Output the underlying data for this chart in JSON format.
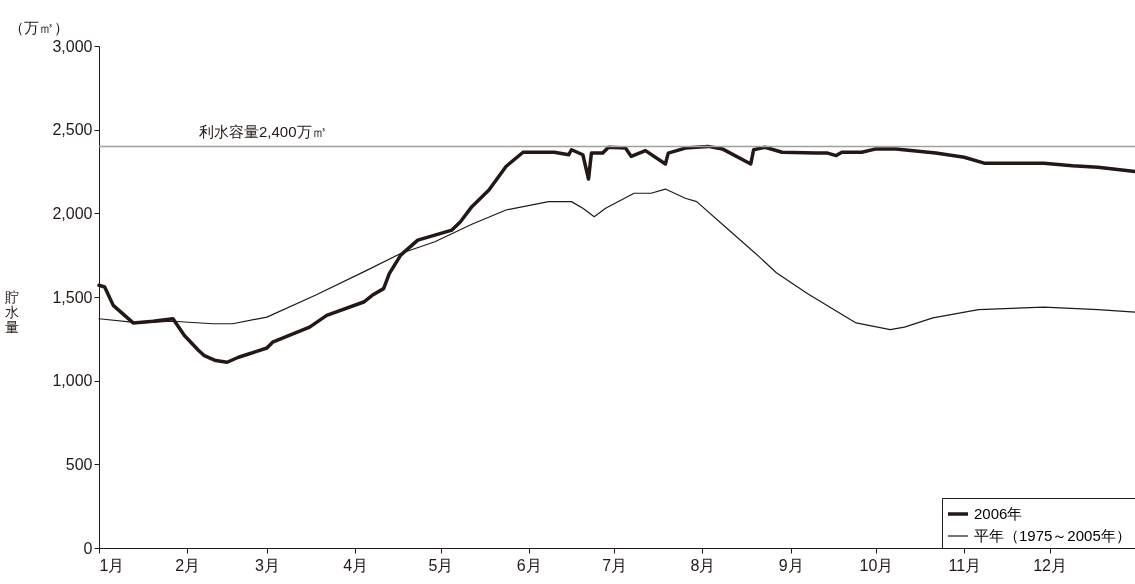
{
  "chart_data": {
    "type": "line",
    "ylabel": "貯水量",
    "annotations": [
      "（万㎥）"
    ],
    "xlim": [
      "--01-01",
      "--12-31"
    ],
    "xticks": [
      {
        "value": "--01-01",
        "label": "1月"
      },
      {
        "value": "--02-01",
        "label": "2月"
      },
      {
        "value": "--03-01",
        "label": "3月"
      },
      {
        "value": "--04-01",
        "label": "4月"
      },
      {
        "value": "--05-01",
        "label": "5月"
      },
      {
        "value": "--06-01",
        "label": "6月"
      },
      {
        "value": "--07-01",
        "label": "7月"
      },
      {
        "value": "--08-01",
        "label": "8月"
      },
      {
        "value": "--09-01",
        "label": "9月"
      },
      {
        "value": "--10-01",
        "label": "10月"
      },
      {
        "value": "--11-01",
        "label": "11月"
      },
      {
        "value": "--12-01",
        "label": "12月"
      }
    ],
    "ylim": [
      0,
      3000
    ],
    "yticks": [
      0,
      500,
      {
        "value": 1000,
        "label": "1,000"
      },
      {
        "value": 1500,
        "label": "1,500"
      },
      {
        "value": 2000,
        "label": "2,000"
      },
      {
        "value": 2500,
        "label": "2,500"
      },
      {
        "value": 3000,
        "label": "3,000"
      }
    ],
    "grid": false,
    "legend": "bottom right",
    "ref_lines": [
      {
        "axis": "y",
        "value": 2400,
        "label": "利水容量2,400万㎥",
        "color": "#a0a0a0"
      }
    ],
    "series": [
      {
        "name": "2006年",
        "color": "#231815",
        "x": [
          "--01-01",
          "--01-03",
          "--01-06",
          "--01-13",
          "--01-20",
          "--01-27",
          "--01-31",
          "--02-05",
          "--02-07",
          "--02-11",
          "--02-15",
          "--02-19",
          "--03-01",
          "--03-03",
          "--03-16",
          "--03-22",
          "--04-04",
          "--04-07",
          "--04-11",
          "--04-13",
          "--04-17",
          "--04-23",
          "--04-29",
          "--05-05",
          "--05-08",
          "--05-12",
          "--05-18",
          "--05-24",
          "--05-30",
          "--06-10",
          "--06-15",
          "--06-16",
          "--06-20",
          "--06-22",
          "--06-23",
          "--06-27",
          "--06-29",
          "--07-05",
          "--07-07",
          "--07-12",
          "--07-19",
          "--07-20",
          "--07-26",
          "--08-03",
          "--08-08",
          "--08-18",
          "--08-19",
          "--08-23",
          "--08-29",
          "--09-10",
          "--09-14",
          "--09-17",
          "--09-19",
          "--09-26",
          "--10-01",
          "--10-08",
          "--10-22",
          "--11-01",
          "--11-08",
          "--11-13",
          "--11-29",
          "--12-09",
          "--12-18",
          "--12-31"
        ],
        "values": [
          1570,
          1560,
          1450,
          1345,
          1355,
          1370,
          1270,
          1180,
          1150,
          1120,
          1110,
          1140,
          1195,
          1230,
          1320,
          1390,
          1470,
          1510,
          1550,
          1640,
          1750,
          1840,
          1870,
          1900,
          1950,
          2040,
          2140,
          2280,
          2365,
          2365,
          2350,
          2380,
          2350,
          2205,
          2360,
          2360,
          2395,
          2390,
          2340,
          2375,
          2295,
          2360,
          2390,
          2400,
          2385,
          2295,
          2380,
          2395,
          2365,
          2360,
          2360,
          2345,
          2365,
          2365,
          2385,
          2385,
          2360,
          2335,
          2300,
          2300,
          2300,
          2285,
          2275,
          2250
        ]
      },
      {
        "name": "平年（1975～2005年）",
        "color": "#231815",
        "x": [
          "--01-01",
          "--01-15",
          "--01-27",
          "--02-10",
          "--02-17",
          "--03-01",
          "--03-18",
          "--04-04",
          "--04-17",
          "--04-29",
          "--05-12",
          "--05-24",
          "--06-08",
          "--06-16",
          "--06-20",
          "--06-24",
          "--06-28",
          "--07-08",
          "--07-14",
          "--07-19",
          "--07-26",
          "--07-30",
          "--08-09",
          "--08-21",
          "--08-27",
          "--09-07",
          "--09-24",
          "--10-06",
          "--10-11",
          "--10-21",
          "--11-06",
          "--11-29",
          "--12-18",
          "--12-31"
        ],
        "values": [
          1370,
          1345,
          1355,
          1340,
          1340,
          1380,
          1510,
          1650,
          1760,
          1830,
          1935,
          2020,
          2070,
          2070,
          2030,
          1980,
          2030,
          2120,
          2120,
          2145,
          2090,
          2070,
          1920,
          1740,
          1645,
          1520,
          1345,
          1305,
          1320,
          1375,
          1425,
          1440,
          1425,
          1410
        ]
      }
    ]
  }
}
